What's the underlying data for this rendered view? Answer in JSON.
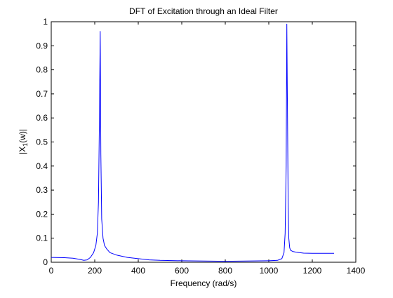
{
  "chart_data": {
    "type": "line",
    "title": "DFT of Excitation through an Ideal Filter",
    "xlabel": "Frequency (rad/s)",
    "ylabel": "|X_1(w)|",
    "xlim": [
      0,
      1400
    ],
    "ylim": [
      0,
      1
    ],
    "xticks": [
      0,
      200,
      400,
      600,
      800,
      1000,
      1200,
      1400
    ],
    "yticks": [
      0,
      0.1,
      0.2,
      0.3,
      0.4,
      0.5,
      0.6,
      0.7,
      0.8,
      0.9,
      1
    ],
    "xtick_labels": [
      "0",
      "200",
      "400",
      "600",
      "800",
      "1000",
      "1200",
      "1400"
    ],
    "ytick_labels": [
      "0",
      "0.1",
      "0.2",
      "0.3",
      "0.4",
      "0.5",
      "0.6",
      "0.7",
      "0.8",
      "0.9",
      "1"
    ],
    "grid": false,
    "series": [
      {
        "color": "#0000ff",
        "x": [
          0,
          60,
          100,
          130,
          150,
          165,
          180,
          195,
          205,
          212,
          217,
          221,
          225,
          228,
          232,
          238,
          245,
          255,
          270,
          300,
          350,
          400,
          450,
          500,
          600,
          700,
          800,
          900,
          1000,
          1040,
          1060,
          1070,
          1075,
          1080,
          1083,
          1086,
          1089,
          1092,
          1096,
          1100,
          1110,
          1125,
          1140,
          1160,
          1200,
          1250,
          1300
        ],
        "y": [
          0.02,
          0.019,
          0.017,
          0.012,
          0.008,
          0.01,
          0.02,
          0.04,
          0.07,
          0.12,
          0.25,
          0.55,
          0.96,
          0.45,
          0.18,
          0.1,
          0.07,
          0.055,
          0.04,
          0.03,
          0.02,
          0.015,
          0.01,
          0.008,
          0.006,
          0.005,
          0.004,
          0.005,
          0.006,
          0.008,
          0.015,
          0.04,
          0.12,
          0.4,
          0.99,
          0.6,
          0.25,
          0.1,
          0.06,
          0.05,
          0.045,
          0.042,
          0.04,
          0.038,
          0.037,
          0.037,
          0.037
        ]
      }
    ]
  }
}
